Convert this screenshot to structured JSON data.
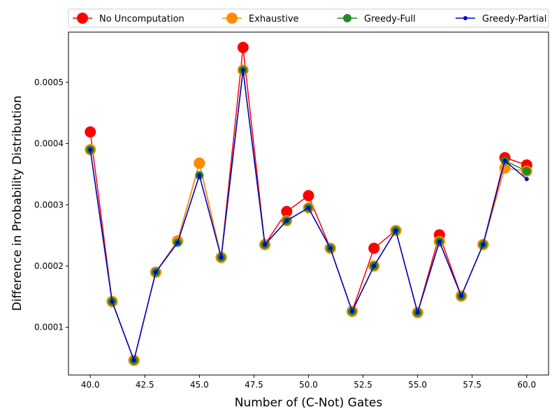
{
  "chart_data": {
    "type": "line",
    "title": "",
    "xlabel": "Number of (C-Not) Gates",
    "ylabel": "Difference in Probability Distribution",
    "xlim": [
      39.0,
      61.0
    ],
    "ylim": [
      2.2e-05,
      0.000582
    ],
    "xticks": [
      40.0,
      42.5,
      45.0,
      47.5,
      50.0,
      52.5,
      55.0,
      57.5,
      60.0
    ],
    "xtick_labels": [
      "40.0",
      "42.5",
      "45.0",
      "47.5",
      "50.0",
      "52.5",
      "55.0",
      "57.5",
      "60.0"
    ],
    "yticks": [
      0.0001,
      0.0002,
      0.0003,
      0.0004,
      0.0005
    ],
    "ytick_labels": [
      "0.0001",
      "0.0002",
      "0.0003",
      "0.0004",
      "0.0005"
    ],
    "grid": false,
    "legend_position": "top (above plot)",
    "x": [
      40,
      41,
      42,
      43,
      44,
      45,
      46,
      47,
      48,
      49,
      50,
      51,
      52,
      53,
      54,
      55,
      56,
      57,
      58,
      59,
      60
    ],
    "series": [
      {
        "name": "No Uncomputation",
        "color": "#ff0000",
        "marker": "large-circle",
        "values": [
          0.000419,
          0.000142,
          4.6e-05,
          0.00019,
          0.000241,
          0.000368,
          0.000214,
          0.000557,
          0.000235,
          0.000289,
          0.000315,
          0.000229,
          0.000126,
          0.000229,
          0.000258,
          0.000124,
          0.000251,
          0.000151,
          0.000235,
          0.000377,
          0.000365
        ]
      },
      {
        "name": "Exhaustive",
        "color": "#ff8c00",
        "marker": "circle",
        "values": [
          0.00039,
          0.000142,
          4.6e-05,
          0.00019,
          0.000241,
          0.000368,
          0.000214,
          0.00052,
          0.000235,
          0.000274,
          0.000295,
          0.000229,
          0.000126,
          0.0002,
          0.000258,
          0.000124,
          0.00024,
          0.000151,
          0.000235,
          0.00036,
          0.000355
        ]
      },
      {
        "name": "Greedy-Full",
        "color": "#228b22",
        "marker": "medium-circle",
        "values": [
          0.00039,
          0.000142,
          4.6e-05,
          0.00019,
          0.000238,
          0.000348,
          0.000214,
          0.00052,
          0.000235,
          0.000274,
          0.000295,
          0.000229,
          0.000126,
          0.0002,
          0.000258,
          0.000124,
          0.00024,
          0.000151,
          0.000235,
          0.000372,
          0.000355
        ]
      },
      {
        "name": "Greedy-Partial",
        "color": "#0000cd",
        "marker": "small-circle",
        "values": [
          0.00039,
          0.000142,
          4.6e-05,
          0.00019,
          0.000238,
          0.000348,
          0.000214,
          0.00052,
          0.000235,
          0.000274,
          0.000295,
          0.000229,
          0.000126,
          0.0002,
          0.000258,
          0.000124,
          0.00024,
          0.000151,
          0.000235,
          0.000372,
          0.000342
        ]
      }
    ]
  }
}
